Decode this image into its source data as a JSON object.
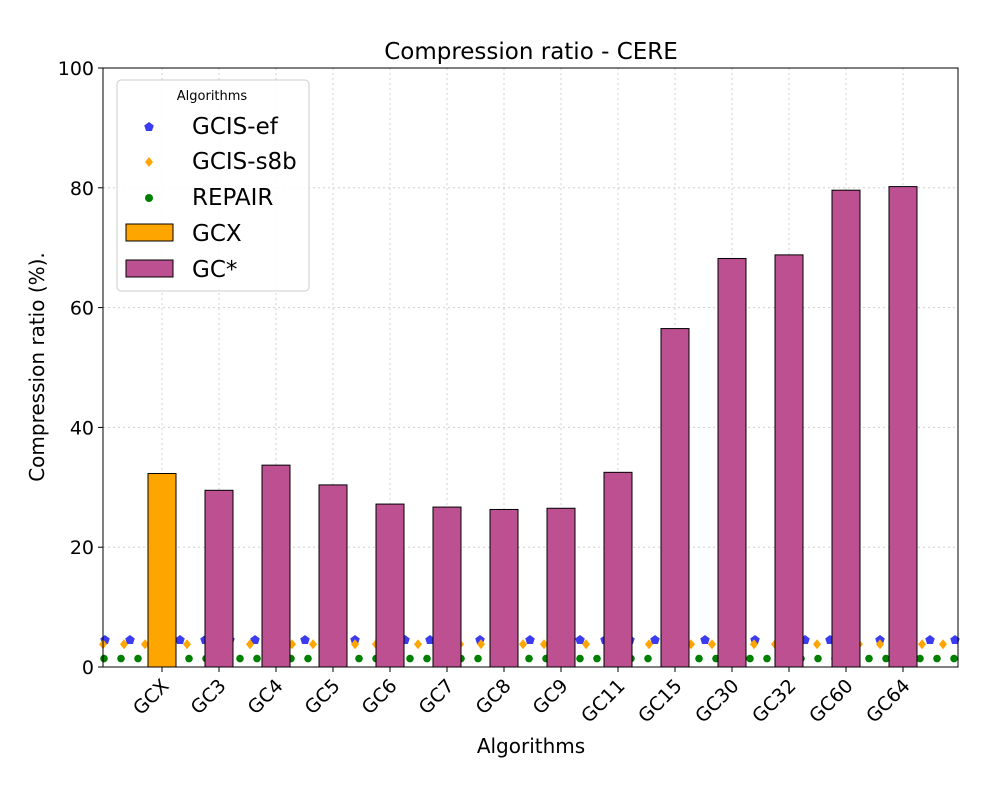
{
  "chart_data": {
    "type": "bar",
    "title": "Compression ratio -  CERE",
    "xlabel": "Algorithms",
    "ylabel": "Compression ratio (%).",
    "ylim": [
      0,
      100
    ],
    "yticks": [
      0,
      20,
      40,
      60,
      80,
      100
    ],
    "grid": true,
    "categories": [
      "GCX",
      "GC3",
      "GC4",
      "GC5",
      "GC6",
      "GC7",
      "GC8",
      "GC9",
      "GC11",
      "GC15",
      "GC30",
      "GC32",
      "GC60",
      "GC64"
    ],
    "bar_series": [
      {
        "name": "GCX",
        "color": "#ffa500",
        "values": [
          32.3,
          null,
          null,
          null,
          null,
          null,
          null,
          null,
          null,
          null,
          null,
          null,
          null,
          null
        ]
      },
      {
        "name": "GC*",
        "color": "#bc5090",
        "values": [
          null,
          29.5,
          33.7,
          30.4,
          27.2,
          26.7,
          26.3,
          26.5,
          32.5,
          56.5,
          68.2,
          68.8,
          79.6,
          80.2
        ]
      }
    ],
    "line_series": [
      {
        "name": "GCIS-ef",
        "color": "#3b3bf0",
        "marker": "pentagon",
        "value": 4.5
      },
      {
        "name": "GCIS-s8b",
        "color": "#ffa500",
        "marker": "diamond",
        "value": 3.8
      },
      {
        "name": "REPAIR",
        "color": "#008000",
        "marker": "circle",
        "value": 1.4
      }
    ],
    "legend": {
      "title": "Algorithms",
      "position": "top-left",
      "entries": [
        "GCIS-ef",
        "GCIS-s8b",
        "REPAIR",
        "GCX",
        "GC*"
      ]
    }
  }
}
